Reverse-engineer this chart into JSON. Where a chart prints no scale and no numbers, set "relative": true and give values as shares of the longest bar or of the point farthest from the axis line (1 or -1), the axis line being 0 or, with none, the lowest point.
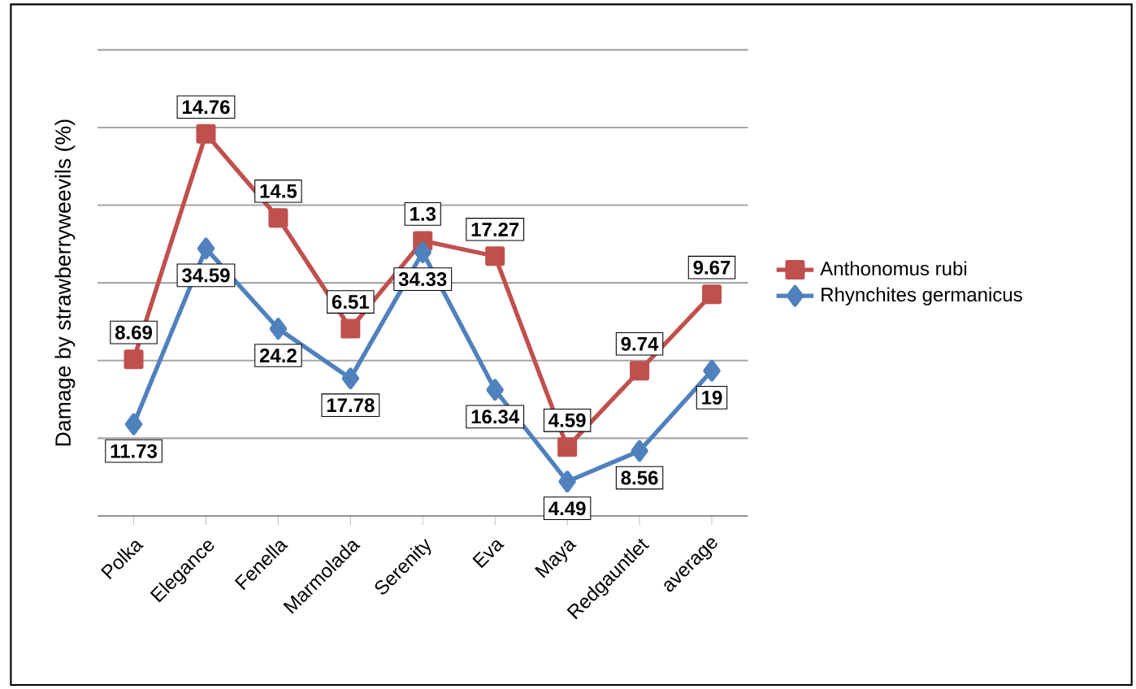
{
  "chart_data": {
    "type": "line",
    "ylabel": "Damage by strawberryweevils (%)",
    "relative": true,
    "categories": [
      "Polka",
      "Elegance",
      "Fenella",
      "Marmolada",
      "Serenity",
      "Eva",
      "Maya",
      "Redgauntlet",
      "average"
    ],
    "series": [
      {
        "name": "Anthonomus rubi",
        "color": "#c0504d",
        "marker": "square",
        "values": [
          0.41,
          1,
          0.78,
          0.49,
          0.72,
          0.68,
          0.18,
          0.38,
          0.58
        ]
      },
      {
        "name": "Rhynchites germanicus",
        "color": "#4f81bd",
        "marker": "diamond",
        "values": [
          0.24,
          0.7,
          0.49,
          0.36,
          0.69,
          0.33,
          0.09,
          0.17,
          0.38
        ]
      }
    ],
    "annotations": [
      "8.69",
      "14.76",
      "14.5",
      "6.51",
      "1.3",
      "17.27",
      "4.59",
      "9.74",
      "9.67",
      "11.73",
      "34.59",
      "24.2",
      "17.78",
      "34.33",
      "16.34",
      "4.49",
      "8.56",
      "19"
    ],
    "grid": "y",
    "legend": "right",
    "line_style": "solid"
  }
}
